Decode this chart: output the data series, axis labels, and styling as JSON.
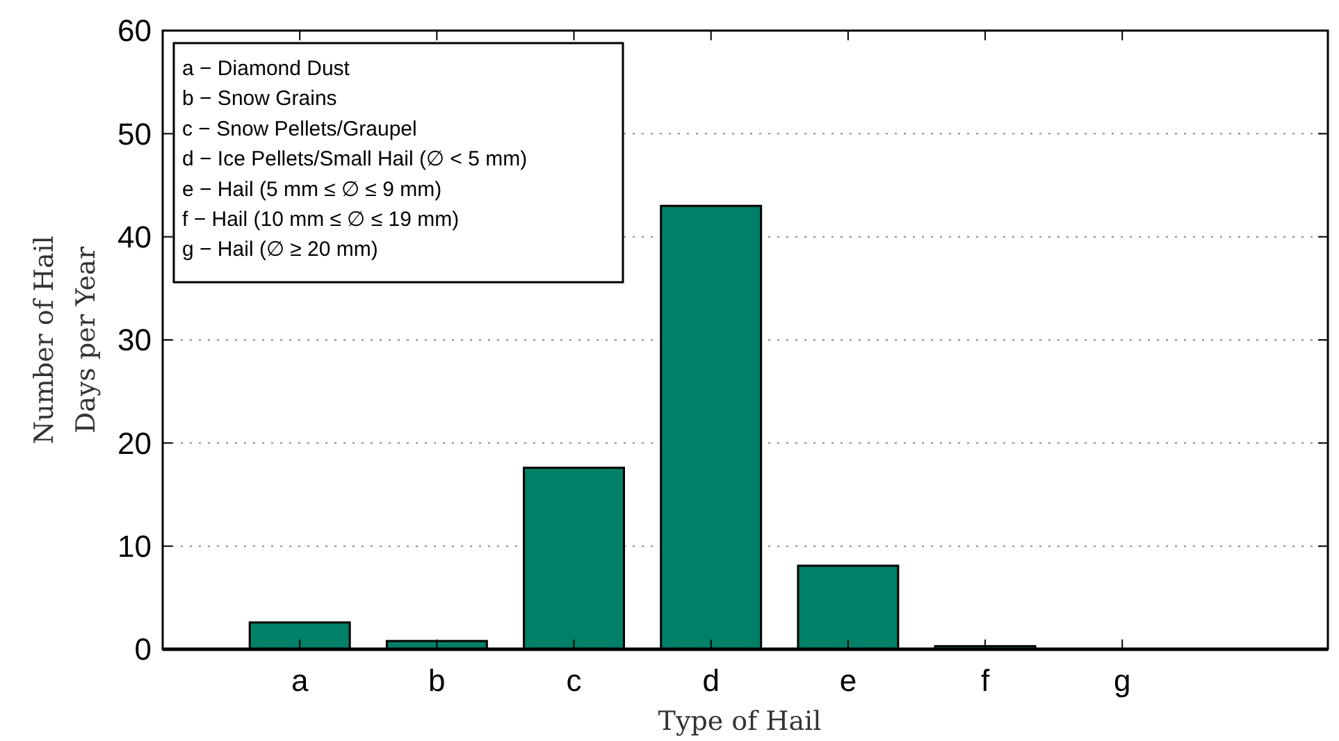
{
  "chart_data": {
    "type": "bar",
    "xlabel": "Type of Hail",
    "ylabel": "Number of Hail\nDays per Year",
    "categories": [
      "a",
      "b",
      "c",
      "d",
      "e",
      "f",
      "g"
    ],
    "values": [
      2.6,
      0.8,
      17.6,
      43,
      8.1,
      0.3,
      0
    ],
    "color": "#008066",
    "ylim": [
      0,
      60
    ],
    "yticks": [
      0,
      10,
      20,
      30,
      40,
      50,
      60
    ],
    "grid": "y",
    "annotations": [
      "a − Diamond Dust",
      "b − Snow Grains",
      "c − Snow Pellets/Graupel",
      "d − Ice Pellets/Small Hail (∅ < 5 mm)",
      "e − Hail (5 mm ≤ ∅ ≤ 9 mm)",
      "f − Hail (10 mm ≤ ∅ ≤ 19 mm)",
      "g − Hail (∅ ≥ 20 mm)"
    ]
  }
}
